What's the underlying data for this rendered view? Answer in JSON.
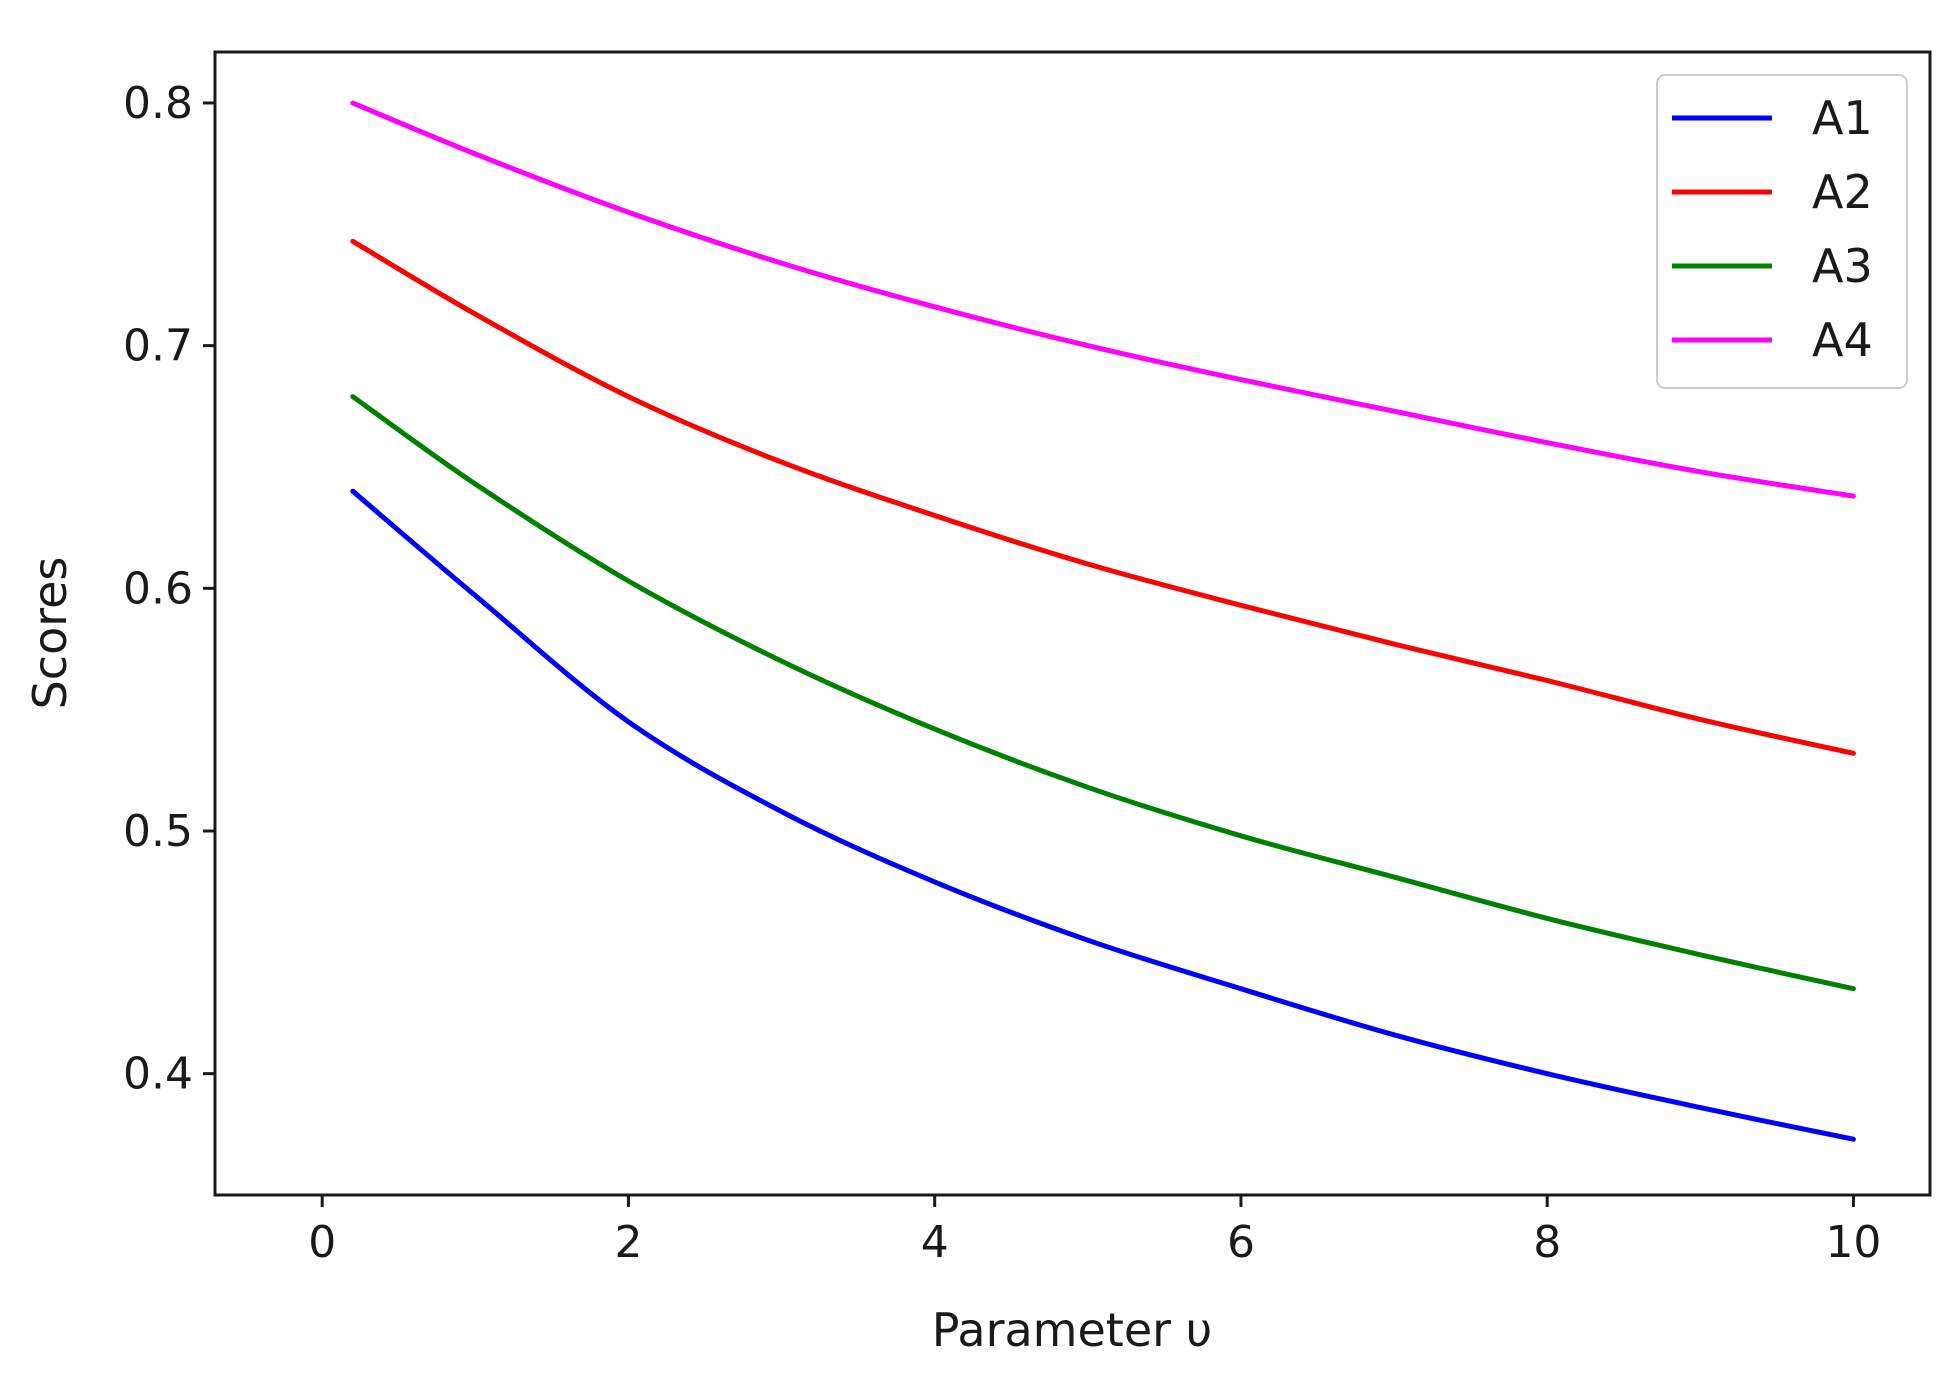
{
  "chart_data": {
    "type": "line",
    "title": "",
    "xlabel": "Parameter υ",
    "ylabel": "Scores",
    "xlim": [
      -0.7,
      10.5
    ],
    "ylim": [
      0.35,
      0.821
    ],
    "xticks": [
      0,
      2,
      4,
      6,
      8,
      10
    ],
    "yticks": [
      0.4,
      0.5,
      0.6,
      0.7,
      0.8
    ],
    "xtick_labels": [
      "0",
      "2",
      "4",
      "6",
      "8",
      "10"
    ],
    "ytick_labels": [
      "0.4",
      "0.5",
      "0.6",
      "0.7",
      "0.8"
    ],
    "grid": false,
    "legend": "top-right",
    "x": [
      0.2,
      1,
      2,
      3,
      4,
      5,
      6,
      7,
      8,
      9,
      10
    ],
    "series": [
      {
        "name": "A1",
        "color": "#0000ff",
        "values": [
          0.64,
          0.597,
          0.545,
          0.508,
          0.479,
          0.455,
          0.435,
          0.416,
          0.4,
          0.386,
          0.373
        ]
      },
      {
        "name": "A2",
        "color": "#ff0000",
        "values": [
          0.743,
          0.713,
          0.679,
          0.652,
          0.63,
          0.61,
          0.593,
          0.577,
          0.562,
          0.546,
          0.532
        ]
      },
      {
        "name": "A3",
        "color": "#008000",
        "values": [
          0.679,
          0.643,
          0.603,
          0.57,
          0.542,
          0.518,
          0.498,
          0.481,
          0.464,
          0.449,
          0.435
        ]
      },
      {
        "name": "A4",
        "color": "#ff00ff",
        "values": [
          0.8,
          0.779,
          0.755,
          0.734,
          0.716,
          0.7,
          0.686,
          0.673,
          0.66,
          0.648,
          0.638
        ]
      }
    ]
  }
}
